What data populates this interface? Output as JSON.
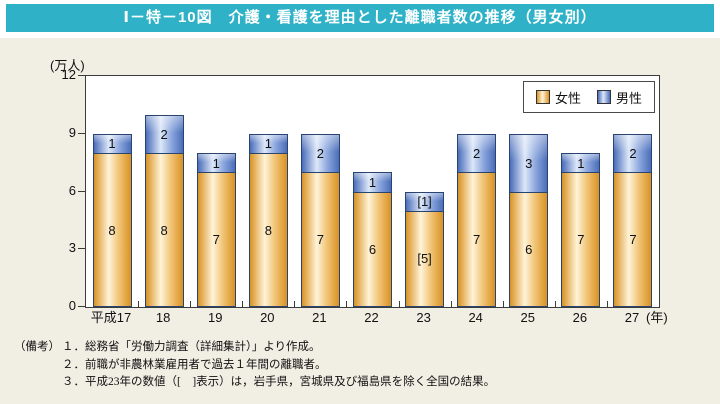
{
  "title": "Ⅰ－特－10図　介護・看護を理由とした離職者数の推移（男女別）",
  "colors": {
    "header_bg": "#2fb2c7",
    "panel_bg": "#f1eee4",
    "plot_border": "#3c3c3c",
    "bar_border": "#2a4470",
    "female_edge": "#d99224",
    "female_light": "#fff3d8",
    "female_mid": "#f0c374",
    "male_edge": "#4a6dba",
    "male_light": "#dce7f8",
    "male_mid": "#8fa9de",
    "text": "#111111"
  },
  "chart_data": {
    "type": "bar",
    "stacked": true,
    "title": "介護・看護を理由とした離職者数の推移（男女別）",
    "unit_label": "(万人)",
    "categories": [
      "平成17",
      "18",
      "19",
      "20",
      "21",
      "22",
      "23",
      "24",
      "25",
      "26",
      "27"
    ],
    "x_axis_suffix": "(年)",
    "y_ticks": [
      0,
      3,
      6,
      9,
      12
    ],
    "ylim": [
      0,
      12
    ],
    "grid": false,
    "legend_position": "top-right",
    "series": [
      {
        "name": "女性",
        "values": [
          8,
          8,
          7,
          8,
          7,
          6,
          5,
          7,
          6,
          7,
          7
        ],
        "labels": [
          "8",
          "8",
          "7",
          "8",
          "7",
          "6",
          "[5]",
          "7",
          "6",
          "7",
          "7"
        ]
      },
      {
        "name": "男性",
        "values": [
          1,
          2,
          1,
          1,
          2,
          1,
          1,
          2,
          3,
          1,
          2
        ],
        "labels": [
          "1",
          "2",
          "1",
          "1",
          "2",
          "1",
          "[1]",
          "2",
          "3",
          "1",
          "2"
        ]
      }
    ]
  },
  "notes": {
    "label": "（備考）",
    "items": [
      "１．総務省「労働力調査（詳細集計）」より作成。",
      "２．前職が非農林業雇用者で過去１年間の離職者。",
      "３．平成23年の数値（[　]表示）は，岩手県，宮城県及び福島県を除く全国の結果。"
    ]
  }
}
